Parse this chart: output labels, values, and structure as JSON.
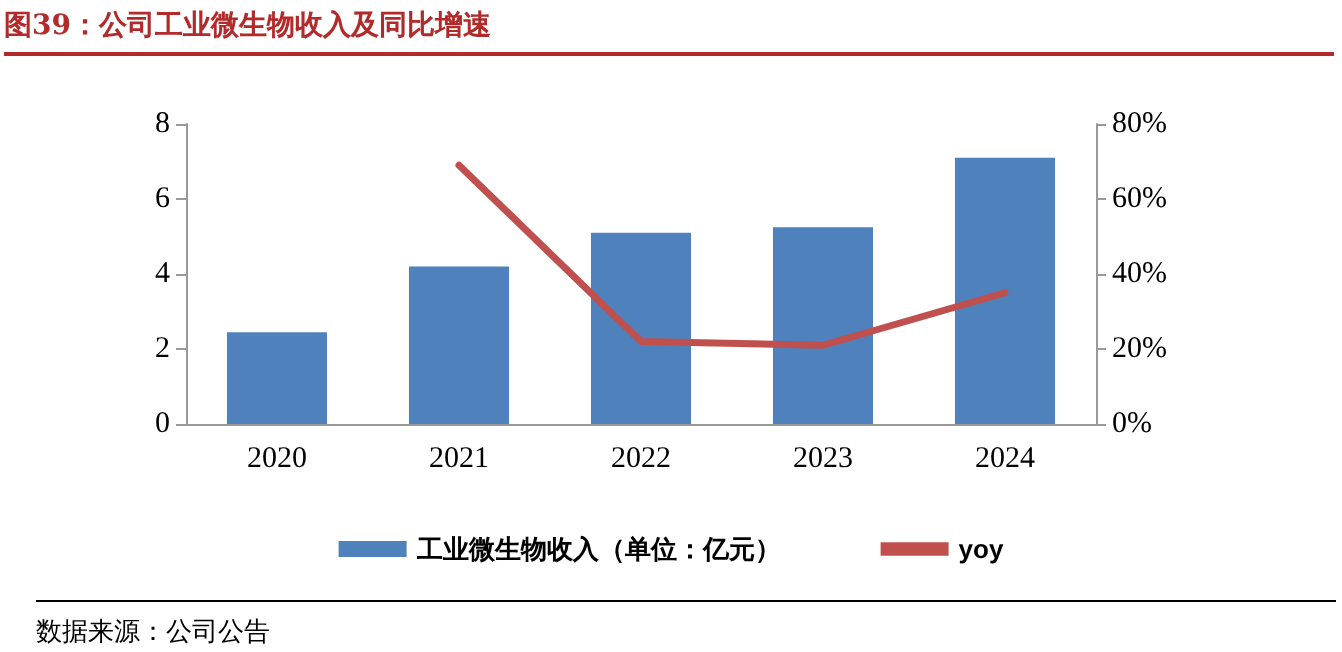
{
  "chart_data": {
    "type": "bar",
    "title": "图39：公司工业微生物收入及同比增速",
    "categories": [
      "2020",
      "2021",
      "2022",
      "2023",
      "2024"
    ],
    "series": [
      {
        "name": "工业微生物收入（单位：亿元）",
        "color": "#4f81bd",
        "values": [
          2.45,
          4.2,
          5.1,
          5.25,
          7.1
        ]
      },
      {
        "name": "yoy",
        "type": "line",
        "axis": "y2",
        "color": "#c0504d",
        "values": [
          null,
          69,
          22,
          21,
          35
        ]
      }
    ],
    "ylim": [
      0,
      8
    ],
    "yticks": [
      0,
      2,
      4,
      6,
      8
    ],
    "y2lim": [
      0,
      80
    ],
    "y2ticks": [
      {
        "value": 0,
        "label": "0%"
      },
      {
        "value": 20,
        "label": "20%"
      },
      {
        "value": 40,
        "label": "40%"
      },
      {
        "value": 60,
        "label": "60%"
      },
      {
        "value": 80,
        "label": "80%"
      }
    ],
    "legend": "bottom",
    "grid": false,
    "marker": "none",
    "line_style": "solid",
    "annotations": [
      "数据来源：公司公告"
    ]
  }
}
